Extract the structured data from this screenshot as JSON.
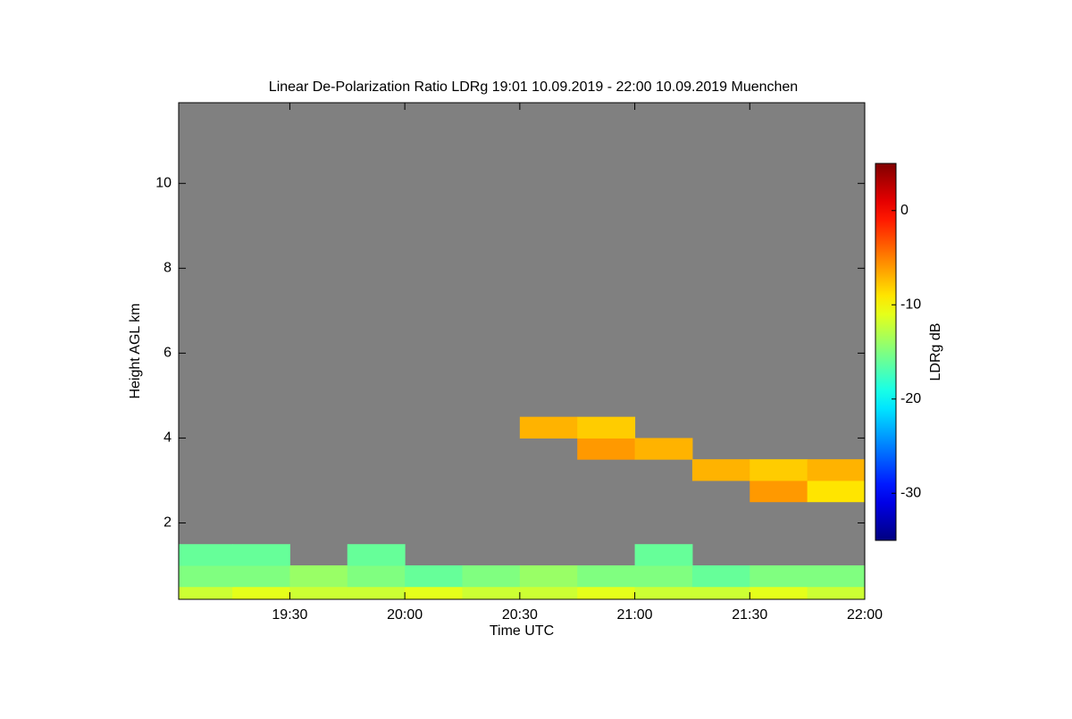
{
  "chart_data": {
    "type": "heatmap",
    "title": "Linear De-Polarization Ratio LDRg   19:01 10.09.2019 - 22:00 10.09.2019 Muenchen",
    "x_label": "Time UTC",
    "y_label": "Height AGL km",
    "colorbar_label": "LDRg dB",
    "xlim": [
      "19:01",
      "22:00"
    ],
    "xticks": [
      "19:30",
      "20:00",
      "20:30",
      "21:00",
      "21:30",
      "22:00"
    ],
    "ylim": [
      0.2,
      11.9
    ],
    "yticks": [
      2,
      4,
      6,
      8,
      10
    ],
    "colormap": "jet",
    "background": "#808080",
    "zlim": [
      -35,
      5
    ],
    "zticks": [
      -30,
      -20,
      -10,
      0
    ],
    "x_bins": [
      "19:01",
      "19:15",
      "19:30",
      "19:45",
      "20:00",
      "20:15",
      "20:30",
      "20:45",
      "21:00",
      "21:15",
      "21:30",
      "21:45",
      "22:00"
    ],
    "y_bins": [
      0.2,
      0.5,
      1.0,
      1.5,
      2.0,
      2.5,
      3.0,
      3.5,
      4.0,
      4.5
    ],
    "z": [
      [
        -12,
        -11,
        -12,
        -12,
        -11,
        -12,
        -12,
        -11,
        -12,
        -12,
        -11,
        -12
      ],
      [
        -15,
        -15,
        -14,
        -15,
        -16,
        -15,
        -14,
        -15,
        -15,
        -16,
        -15,
        -15
      ],
      [
        -16,
        -16,
        null,
        -16,
        null,
        null,
        null,
        null,
        -16,
        null,
        null,
        null
      ],
      [
        null,
        null,
        null,
        null,
        null,
        null,
        null,
        null,
        null,
        null,
        null,
        null
      ],
      [
        null,
        null,
        null,
        null,
        null,
        null,
        null,
        null,
        null,
        null,
        null,
        null
      ],
      [
        null,
        null,
        null,
        null,
        null,
        null,
        null,
        null,
        null,
        null,
        -6,
        -9
      ],
      [
        null,
        null,
        null,
        null,
        null,
        null,
        null,
        null,
        null,
        -7,
        -8,
        -7
      ],
      [
        null,
        null,
        null,
        null,
        null,
        null,
        null,
        -6,
        -7,
        null,
        null,
        null
      ],
      [
        null,
        null,
        null,
        null,
        null,
        null,
        -7,
        -8,
        null,
        null,
        null,
        null
      ]
    ]
  }
}
